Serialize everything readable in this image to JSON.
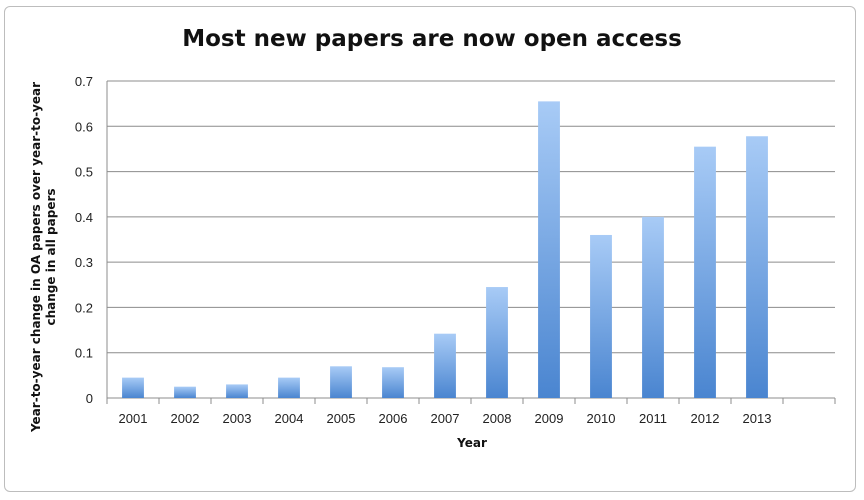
{
  "chart_data": {
    "type": "bar",
    "title": "Most new papers are now open access",
    "xlabel": "Year",
    "ylabel_lines": [
      "Year-to-year change in OA papers over year-to-year",
      "change in all papers"
    ],
    "categories": [
      "2001",
      "2002",
      "2003",
      "2004",
      "2005",
      "2006",
      "2007",
      "2008",
      "2009",
      "2010",
      "2011",
      "2012",
      "2013"
    ],
    "values": [
      0.045,
      0.025,
      0.03,
      0.045,
      0.07,
      0.068,
      0.142,
      0.245,
      0.655,
      0.36,
      0.4,
      0.555,
      0.578
    ],
    "ylim": [
      0,
      0.7
    ],
    "yticks": [
      "0",
      "0.1",
      "0.2",
      "0.3",
      "0.4",
      "0.5",
      "0.6",
      "0.7"
    ],
    "grid": true,
    "legend": "none",
    "colors": {
      "bar_top": "#a8cbf6",
      "bar_bottom": "#4a85d0",
      "grid": "#8c8c8c"
    }
  }
}
